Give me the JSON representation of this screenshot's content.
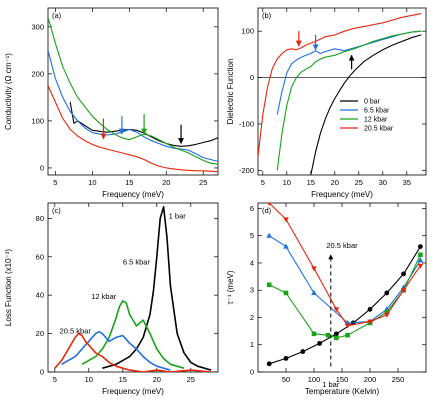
{
  "colors": {
    "black": "#000000",
    "blue": "#1f6fe0",
    "green": "#1aa31a",
    "red": "#e8260c"
  },
  "chart_data": [
    {
      "id": "a",
      "type": "line",
      "panel_label": "(a)",
      "xlabel": "Frequency (meV)",
      "ylabel": "Conductivity (Ω cm⁻¹)",
      "xlim": [
        4,
        27
      ],
      "ylim": [
        -15,
        340
      ],
      "xticks": [
        5,
        10,
        15,
        20,
        25
      ],
      "yticks": [
        0,
        100,
        200,
        300
      ],
      "series": [
        {
          "color": "black",
          "x": [
            7,
            7.5,
            8,
            9,
            10,
            11,
            12,
            13,
            14,
            15,
            16,
            17,
            18,
            19,
            20,
            21,
            22,
            23,
            24,
            25,
            26,
            27
          ],
          "y": [
            140,
            95,
            100,
            90,
            80,
            78,
            76,
            78,
            80,
            82,
            80,
            74,
            66,
            58,
            52,
            48,
            46,
            47,
            50,
            54,
            58,
            64
          ]
        },
        {
          "color": "blue",
          "x": [
            4,
            5,
            6,
            7,
            8,
            9,
            10,
            11,
            12,
            13,
            14,
            15,
            16,
            17,
            18,
            19,
            20,
            21,
            22,
            23,
            24,
            25,
            26,
            27
          ],
          "y": [
            250,
            190,
            150,
            120,
            100,
            85,
            75,
            72,
            70,
            72,
            76,
            82,
            76,
            66,
            58,
            52,
            46,
            42,
            40,
            38,
            30,
            22,
            18,
            14
          ]
        },
        {
          "color": "green",
          "x": [
            4,
            5,
            6,
            7,
            8,
            9,
            10,
            11,
            12,
            13,
            14,
            15,
            16,
            17,
            18,
            19,
            20,
            21,
            22,
            23,
            24,
            25,
            26,
            27
          ],
          "y": [
            320,
            265,
            215,
            180,
            150,
            130,
            110,
            95,
            82,
            72,
            64,
            60,
            66,
            72,
            68,
            60,
            52,
            44,
            38,
            32,
            24,
            16,
            10,
            8
          ]
        },
        {
          "color": "red",
          "x": [
            4,
            5,
            6,
            7,
            8,
            9,
            10,
            11,
            12,
            13,
            14,
            15,
            16,
            17,
            18,
            19,
            20,
            21,
            22,
            23,
            24,
            25,
            26,
            27
          ],
          "y": [
            175,
            140,
            105,
            82,
            68,
            58,
            50,
            44,
            40,
            36,
            32,
            28,
            24,
            18,
            10,
            4,
            0,
            -2,
            -4,
            -5,
            -6,
            -6,
            -7,
            -8
          ]
        }
      ],
      "arrows": [
        {
          "color": "red",
          "x": 11.5,
          "y_from": 105,
          "y_to": 62
        },
        {
          "color": "blue",
          "x": 14,
          "y_from": 110,
          "y_to": 72
        },
        {
          "color": "green",
          "x": 17,
          "y_from": 115,
          "y_to": 72
        },
        {
          "color": "black",
          "x": 22,
          "y_from": 92,
          "y_to": 52
        }
      ]
    },
    {
      "id": "b",
      "type": "line",
      "panel_label": "(b)",
      "xlabel": "Frequency (meV)",
      "ylabel": "Dielectric Function",
      "xlim": [
        4,
        39
      ],
      "ylim": [
        -210,
        150
      ],
      "xticks": [
        5,
        10,
        15,
        20,
        25,
        30,
        35
      ],
      "yticks": [
        -200,
        -100,
        0,
        100
      ],
      "zero_line": true,
      "legend": [
        "0 bar",
        "6.5 kbar",
        "12 kbar",
        "20.5 kbar"
      ],
      "legend_colors": [
        "black",
        "blue",
        "green",
        "red"
      ],
      "series": [
        {
          "name": "0 bar",
          "color": "black",
          "x": [
            15,
            16,
            17,
            18,
            19,
            20,
            21,
            22,
            23,
            24,
            25,
            26,
            28,
            30,
            32,
            34,
            36,
            38
          ],
          "y": [
            -210,
            -160,
            -120,
            -90,
            -65,
            -45,
            -28,
            -12,
            2,
            14,
            24,
            34,
            48,
            60,
            70,
            78,
            86,
            92
          ]
        },
        {
          "name": "6.5 kbar",
          "color": "blue",
          "x": [
            8,
            9,
            10,
            11,
            12,
            13,
            14,
            15,
            16,
            17,
            18,
            20,
            22,
            24,
            26,
            28,
            30,
            32,
            34,
            36,
            38
          ],
          "y": [
            -80,
            -30,
            10,
            30,
            38,
            44,
            48,
            52,
            58,
            52,
            56,
            62,
            58,
            64,
            70,
            76,
            82,
            88,
            94,
            98,
            100
          ]
        },
        {
          "name": "12 kbar",
          "color": "green",
          "x": [
            8,
            9,
            10,
            11,
            12,
            13,
            14,
            15,
            16,
            17,
            18,
            20,
            22,
            24,
            26,
            28,
            30,
            32,
            34,
            36,
            38
          ],
          "y": [
            -200,
            -120,
            -60,
            -20,
            0,
            12,
            18,
            24,
            34,
            40,
            44,
            48,
            56,
            62,
            70,
            78,
            84,
            90,
            94,
            98,
            100
          ]
        },
        {
          "name": "20.5 kbar",
          "color": "red",
          "x": [
            4,
            5,
            6,
            7,
            8,
            9,
            10,
            11,
            12,
            13,
            14,
            16,
            18,
            20,
            22,
            24,
            26,
            28,
            30,
            32,
            34,
            36,
            38
          ],
          "y": [
            -170,
            -80,
            -20,
            20,
            40,
            52,
            60,
            62,
            60,
            64,
            70,
            78,
            88,
            92,
            100,
            106,
            110,
            114,
            118,
            124,
            130,
            134,
            138
          ]
        }
      ],
      "arrows": [
        {
          "color": "red",
          "x": 12.5,
          "y_from": 100,
          "y_to": 68
        },
        {
          "color": "blue",
          "x": 16,
          "y_from": 92,
          "y_to": 60
        },
        {
          "color": "black",
          "x": 23.5,
          "y_from": 18,
          "y_to": 48
        }
      ]
    },
    {
      "id": "c",
      "type": "line",
      "panel_label": "(c)",
      "xlabel": "Frequency (meV)",
      "ylabel": "Loss Function (x10⁻³)",
      "xlim": [
        4,
        29
      ],
      "ylim": [
        0,
        88
      ],
      "xticks": [
        5,
        10,
        15,
        20,
        25
      ],
      "yticks": [
        0,
        20,
        40,
        60,
        80
      ],
      "annotations": [
        "1 bar",
        "6.5 kbar",
        "12 kbar",
        "20.5 kbar"
      ],
      "series": [
        {
          "name": "1 bar",
          "color": "black",
          "x": [
            12,
            14,
            16,
            17,
            18,
            19,
            19.5,
            20,
            20.5,
            21,
            21.5,
            22,
            23,
            24,
            25,
            26,
            28
          ],
          "y": [
            2,
            4,
            8,
            12,
            18,
            30,
            42,
            60,
            80,
            86,
            70,
            45,
            20,
            10,
            5,
            3,
            1
          ]
        },
        {
          "name": "6.5 kbar",
          "color": "green",
          "x": [
            9,
            11,
            12,
            13,
            14,
            14.5,
            15,
            15.5,
            16,
            17,
            18,
            19,
            20,
            21,
            22,
            24
          ],
          "y": [
            4,
            8,
            12,
            18,
            28,
            34,
            37,
            36,
            30,
            24,
            27,
            20,
            12,
            7,
            4,
            2
          ]
        },
        {
          "name": "12 kbar",
          "color": "blue",
          "x": [
            6,
            8,
            9,
            10,
            11,
            11.5,
            12,
            13,
            14,
            15,
            16,
            17,
            18,
            19,
            20,
            22
          ],
          "y": [
            4,
            8,
            12,
            16,
            20,
            21,
            20,
            16,
            18,
            19,
            15,
            12,
            8,
            5,
            3,
            1
          ]
        },
        {
          "name": "20.5 kbar",
          "color": "red",
          "x": [
            5,
            6,
            7,
            8,
            8.5,
            9,
            9.5,
            10,
            11,
            12,
            13,
            14,
            15,
            16,
            18,
            20,
            22,
            25,
            28
          ],
          "y": [
            2,
            6,
            12,
            18,
            20,
            19,
            16,
            14,
            10,
            8,
            5,
            3,
            2,
            1,
            0,
            1,
            0,
            1,
            0
          ]
        }
      ]
    },
    {
      "id": "d",
      "type": "line",
      "panel_label": "(d)",
      "xlabel": "Temperature (Kelvin)",
      "ylabel": "τ⁻¹ (meV)",
      "xlim": [
        0,
        300
      ],
      "ylim": [
        0,
        6.2
      ],
      "xticks": [
        50,
        100,
        150,
        200,
        250
      ],
      "yticks": [
        0,
        1,
        2,
        3,
        4,
        5,
        6
      ],
      "annotations": [
        "20.5 kbar",
        "1 bar"
      ],
      "dashed_arrow": {
        "x": 130,
        "y_from": 0.2,
        "y_to": 4.3
      },
      "series": [
        {
          "name": "1 bar",
          "color": "black",
          "marker": "circle",
          "x": [
            20,
            50,
            80,
            110,
            140,
            170,
            200,
            230,
            260,
            290
          ],
          "y": [
            0.3,
            0.5,
            0.75,
            1.05,
            1.4,
            1.8,
            2.3,
            2.9,
            3.6,
            4.6
          ]
        },
        {
          "name": "6.5 kbar",
          "color": "blue",
          "marker": "triangle",
          "x": [
            20,
            50,
            100,
            160,
            200,
            230,
            260,
            290
          ],
          "y": [
            5.0,
            4.6,
            2.9,
            1.8,
            1.85,
            2.3,
            3.1,
            4.1
          ]
        },
        {
          "name": "12 kbar",
          "color": "green",
          "marker": "square",
          "x": [
            20,
            50,
            100,
            125,
            140,
            160,
            200,
            230,
            260,
            290
          ],
          "y": [
            3.2,
            2.9,
            1.4,
            1.35,
            1.25,
            1.35,
            1.8,
            2.2,
            3.0,
            4.3
          ]
        },
        {
          "name": "20.5 kbar",
          "color": "red",
          "marker": "triangle-down",
          "x": [
            20,
            50,
            100,
            140,
            160,
            200,
            230,
            260,
            290
          ],
          "y": [
            6.2,
            5.6,
            3.8,
            2.3,
            1.7,
            1.85,
            2.1,
            3.0,
            3.9
          ]
        }
      ]
    }
  ]
}
